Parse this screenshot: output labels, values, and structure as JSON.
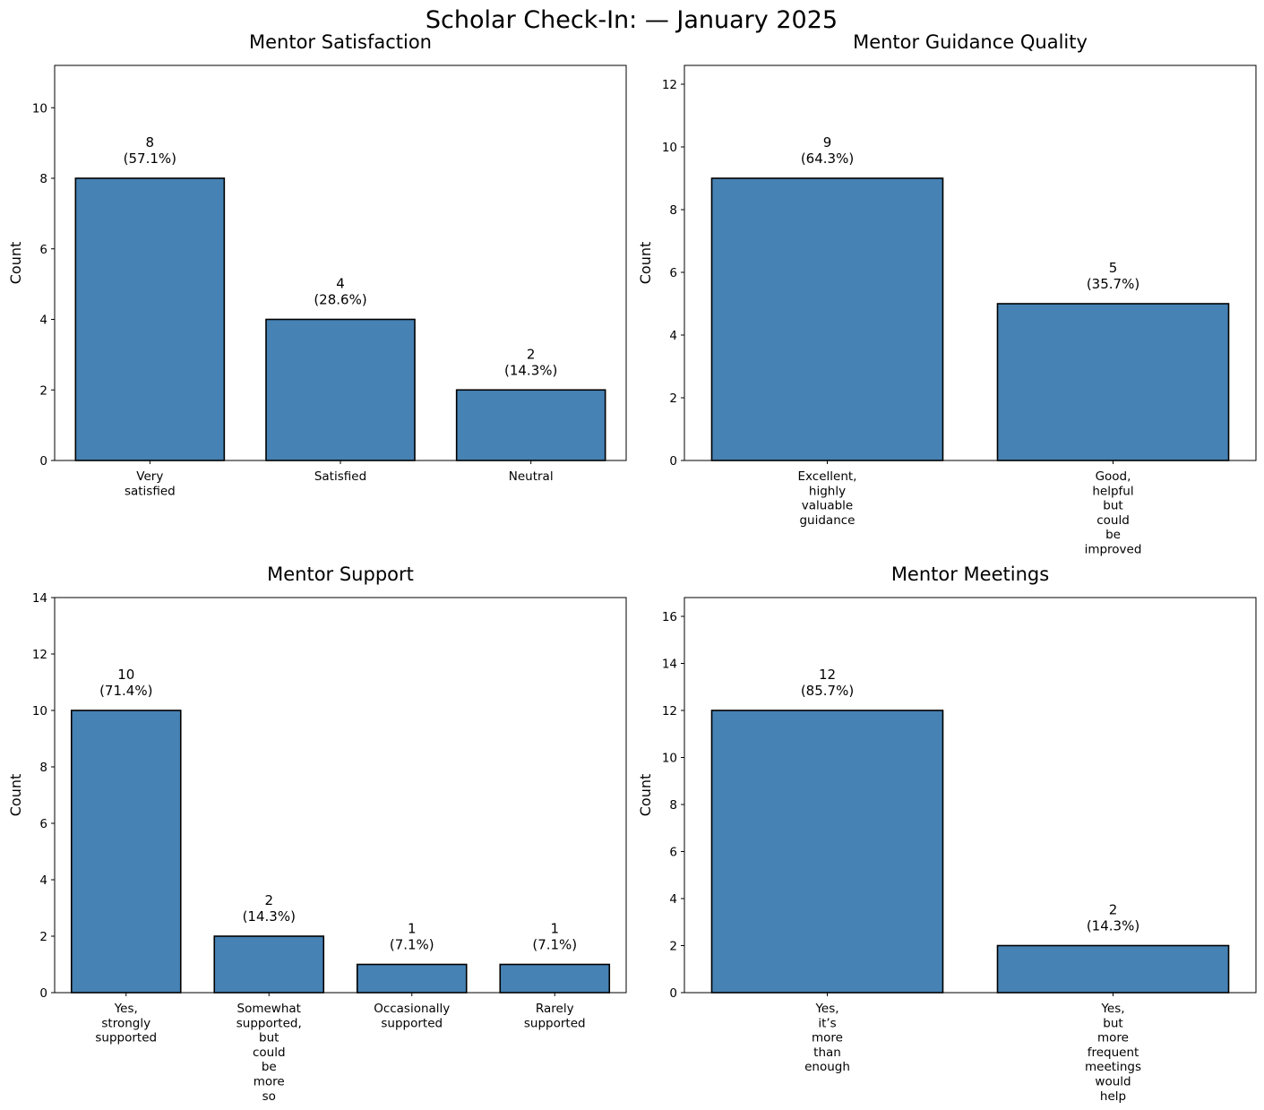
{
  "figure": {
    "title": "Scholar Check-In: — January 2025"
  },
  "colors": {
    "bar_fill": "#4682b4",
    "bar_edge": "#000000",
    "text": "#000000"
  },
  "chart_data": [
    {
      "type": "bar",
      "title": "Mentor Satisfaction",
      "xlabel": "",
      "ylabel": "Count",
      "categories": [
        "Very satisfied",
        "Satisfied",
        "Neutral"
      ],
      "values": [
        8,
        4,
        2
      ],
      "value_labels": [
        "8",
        "4",
        "2"
      ],
      "percent_labels": [
        "(57.1%)",
        "(28.6%)",
        "(14.3%)"
      ],
      "yticks": [
        0,
        2,
        4,
        6,
        8,
        10
      ],
      "ylim": [
        0,
        11.2
      ],
      "grid": false,
      "legend": "none"
    },
    {
      "type": "bar",
      "title": "Mentor Guidance Quality",
      "xlabel": "",
      "ylabel": "Count",
      "categories": [
        "Excellent, highly valuable guidance",
        "Good, helpful but could be improved"
      ],
      "values": [
        9,
        5
      ],
      "value_labels": [
        "9",
        "5"
      ],
      "percent_labels": [
        "(64.3%)",
        "(35.7%)"
      ],
      "yticks": [
        0,
        2,
        4,
        6,
        8,
        10,
        12
      ],
      "ylim": [
        0,
        12.6
      ],
      "grid": false,
      "legend": "none"
    },
    {
      "type": "bar",
      "title": "Mentor Support",
      "xlabel": "",
      "ylabel": "Count",
      "categories": [
        "Yes, strongly supported",
        "Somewhat supported, but could be more so",
        "Occasionally supported",
        "Rarely supported"
      ],
      "values": [
        10,
        2,
        1,
        1
      ],
      "value_labels": [
        "10",
        "2",
        "1",
        "1"
      ],
      "percent_labels": [
        "(71.4%)",
        "(14.3%)",
        "(7.1%)",
        "(7.1%)"
      ],
      "yticks": [
        0,
        2,
        4,
        6,
        8,
        10,
        12,
        14
      ],
      "ylim": [
        0,
        14
      ],
      "grid": false,
      "legend": "none"
    },
    {
      "type": "bar",
      "title": "Mentor Meetings",
      "xlabel": "",
      "ylabel": "Count",
      "categories": [
        "Yes, it’s more than enough",
        "Yes, but more frequent meetings would help"
      ],
      "values": [
        12,
        2
      ],
      "value_labels": [
        "12",
        "2"
      ],
      "percent_labels": [
        "(85.7%)",
        "(14.3%)"
      ],
      "yticks": [
        0,
        2,
        4,
        6,
        8,
        10,
        12,
        14,
        16
      ],
      "ylim": [
        0,
        16.8
      ],
      "grid": false,
      "legend": "none"
    }
  ]
}
